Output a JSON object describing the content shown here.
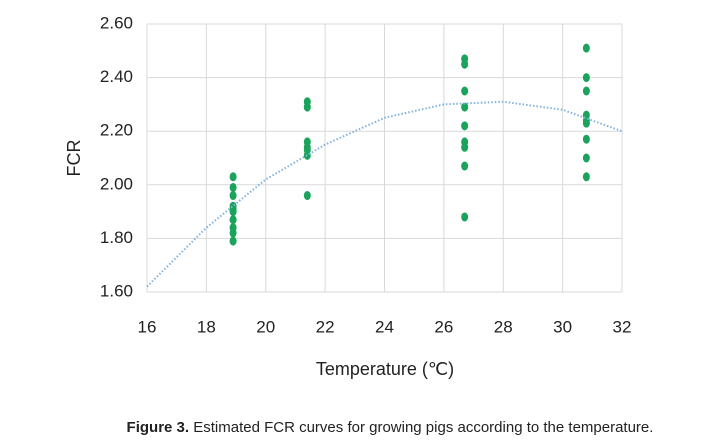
{
  "chart_data": {
    "type": "scatter",
    "x_label": "Temperature (℃)",
    "y_label": "FCR",
    "xlim": [
      16,
      32
    ],
    "ylim": [
      1.6,
      2.6
    ],
    "xticks": [
      16,
      18,
      20,
      22,
      24,
      26,
      28,
      30,
      32
    ],
    "yticks": [
      {
        "value": 1.6,
        "label": "1.60"
      },
      {
        "value": 1.8,
        "label": "1.80"
      },
      {
        "value": 2.0,
        "label": "2.00"
      },
      {
        "value": 2.2,
        "label": "2.20"
      },
      {
        "value": 2.4,
        "label": "2.40"
      },
      {
        "value": 2.6,
        "label": "2.60"
      }
    ],
    "grid": true,
    "series": [
      {
        "type": "scatter",
        "color": "#1aa35a",
        "x": [
          18.9,
          18.9,
          18.9,
          18.9,
          18.9,
          18.9,
          18.9,
          18.9,
          18.9,
          18.9,
          21.4,
          21.4,
          21.4,
          21.4,
          21.4,
          21.4,
          21.4,
          26.7,
          26.7,
          26.7,
          26.7,
          26.7,
          26.7,
          26.7,
          26.7,
          26.7,
          30.8,
          30.8,
          30.8,
          30.8,
          30.8,
          30.8,
          30.8,
          30.8,
          30.8
        ],
        "values": [
          2.03,
          1.99,
          1.96,
          1.92,
          1.91,
          1.9,
          1.87,
          1.84,
          1.82,
          1.79,
          2.31,
          2.29,
          2.16,
          2.14,
          2.13,
          2.11,
          1.96,
          2.47,
          2.45,
          2.35,
          2.29,
          2.22,
          2.16,
          2.14,
          2.07,
          1.88,
          2.51,
          2.4,
          2.35,
          2.26,
          2.24,
          2.23,
          2.17,
          2.1,
          2.03
        ]
      },
      {
        "type": "line",
        "color": "#7fb2e0",
        "x": [
          16,
          18,
          20,
          22,
          24,
          26,
          28,
          30,
          32
        ],
        "values": [
          1.62,
          1.84,
          2.02,
          2.15,
          2.25,
          2.3,
          2.31,
          2.28,
          2.2
        ]
      }
    ]
  },
  "figure_caption": {
    "label": "Figure 3.",
    "text": "Estimated FCR curves for growing pigs according to the temperature."
  }
}
